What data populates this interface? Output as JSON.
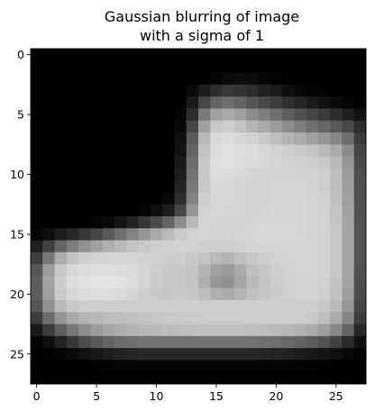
{
  "chart_data": {
    "type": "heatmap",
    "title_lines": [
      "Gaussian blurring of image",
      "with a sigma of 1"
    ],
    "colormap": "gray",
    "value_range": [
      0,
      255
    ],
    "x_ticks": [
      0,
      5,
      10,
      15,
      20,
      25
    ],
    "y_ticks": [
      0,
      5,
      10,
      15,
      20,
      25
    ],
    "xlim": [
      -0.5,
      27.5
    ],
    "ylim": [
      27.5,
      -0.5
    ],
    "rows": 28,
    "cols": 28,
    "grid": false,
    "values": [
      [
        0,
        0,
        0,
        0,
        0,
        0,
        0,
        0,
        0,
        0,
        0,
        0,
        0,
        0,
        0,
        0,
        0,
        0,
        0,
        0,
        0,
        0,
        0,
        0,
        0,
        0,
        0,
        0
      ],
      [
        0,
        0,
        0,
        0,
        0,
        0,
        0,
        0,
        0,
        0,
        0,
        0,
        0,
        0,
        0,
        0,
        0,
        0,
        0,
        0,
        0,
        0,
        0,
        0,
        0,
        0,
        0,
        0
      ],
      [
        0,
        0,
        0,
        0,
        0,
        0,
        0,
        0,
        0,
        0,
        0,
        0,
        0,
        0,
        0,
        5,
        10,
        14,
        12,
        8,
        4,
        2,
        0,
        0,
        0,
        0,
        0,
        0
      ],
      [
        0,
        0,
        0,
        0,
        0,
        0,
        0,
        0,
        0,
        0,
        0,
        0,
        0,
        10,
        28,
        45,
        55,
        52,
        45,
        35,
        25,
        15,
        8,
        4,
        2,
        0,
        0,
        0
      ],
      [
        0,
        0,
        0,
        0,
        0,
        0,
        0,
        0,
        0,
        0,
        0,
        0,
        0,
        25,
        70,
        100,
        110,
        100,
        85,
        72,
        60,
        48,
        38,
        28,
        18,
        10,
        5,
        2
      ],
      [
        0,
        0,
        0,
        0,
        0,
        0,
        0,
        0,
        0,
        0,
        0,
        0,
        5,
        45,
        120,
        160,
        170,
        160,
        140,
        125,
        110,
        95,
        82,
        70,
        58,
        45,
        32,
        18
      ],
      [
        0,
        0,
        0,
        0,
        0,
        0,
        0,
        0,
        0,
        0,
        0,
        0,
        10,
        70,
        160,
        200,
        205,
        195,
        180,
        170,
        155,
        140,
        125,
        112,
        100,
        88,
        72,
        45
      ],
      [
        0,
        0,
        0,
        0,
        0,
        0,
        0,
        0,
        0,
        0,
        0,
        0,
        15,
        90,
        185,
        215,
        220,
        215,
        210,
        200,
        190,
        180,
        170,
        160,
        148,
        135,
        110,
        60
      ],
      [
        0,
        0,
        0,
        0,
        0,
        0,
        0,
        0,
        0,
        0,
        0,
        0,
        20,
        100,
        195,
        220,
        225,
        222,
        220,
        215,
        210,
        205,
        200,
        195,
        185,
        170,
        140,
        70
      ],
      [
        0,
        0,
        0,
        0,
        0,
        0,
        0,
        0,
        0,
        0,
        0,
        0,
        25,
        108,
        200,
        222,
        225,
        220,
        218,
        215,
        212,
        210,
        208,
        205,
        200,
        185,
        150,
        75
      ],
      [
        0,
        0,
        0,
        0,
        0,
        0,
        0,
        0,
        0,
        0,
        0,
        0,
        30,
        115,
        200,
        220,
        218,
        215,
        212,
        210,
        210,
        212,
        210,
        210,
        205,
        190,
        155,
        78
      ],
      [
        0,
        0,
        0,
        0,
        0,
        0,
        0,
        0,
        0,
        0,
        0,
        0,
        35,
        120,
        200,
        215,
        215,
        212,
        210,
        210,
        212,
        212,
        212,
        210,
        205,
        190,
        158,
        80
      ],
      [
        0,
        0,
        0,
        0,
        0,
        0,
        0,
        0,
        0,
        0,
        0,
        8,
        45,
        130,
        205,
        215,
        215,
        212,
        210,
        210,
        212,
        212,
        214,
        212,
        208,
        192,
        160,
        80
      ],
      [
        0,
        0,
        0,
        0,
        0,
        0,
        0,
        0,
        0,
        5,
        15,
        30,
        70,
        150,
        210,
        215,
        212,
        212,
        210,
        212,
        214,
        214,
        214,
        212,
        208,
        195,
        162,
        80
      ],
      [
        0,
        0,
        0,
        0,
        0,
        5,
        10,
        20,
        35,
        55,
        75,
        100,
        140,
        185,
        212,
        212,
        210,
        210,
        212,
        214,
        214,
        214,
        214,
        212,
        210,
        197,
        165,
        82
      ],
      [
        5,
        15,
        28,
        40,
        55,
        70,
        90,
        110,
        130,
        150,
        170,
        185,
        200,
        210,
        212,
        210,
        210,
        212,
        214,
        216,
        216,
        215,
        214,
        212,
        210,
        198,
        165,
        82
      ],
      [
        30,
        65,
        100,
        125,
        145,
        160,
        175,
        185,
        195,
        200,
        205,
        208,
        210,
        210,
        205,
        205,
        205,
        210,
        212,
        214,
        214,
        212,
        212,
        212,
        210,
        198,
        165,
        82
      ],
      [
        60,
        120,
        170,
        195,
        205,
        210,
        212,
        212,
        212,
        210,
        208,
        205,
        205,
        200,
        195,
        185,
        180,
        190,
        200,
        205,
        210,
        212,
        212,
        212,
        210,
        198,
        165,
        82
      ],
      [
        85,
        155,
        200,
        215,
        220,
        222,
        222,
        220,
        218,
        212,
        205,
        200,
        200,
        195,
        180,
        160,
        155,
        170,
        190,
        198,
        205,
        210,
        212,
        212,
        210,
        198,
        165,
        80
      ],
      [
        95,
        165,
        205,
        220,
        225,
        228,
        228,
        225,
        220,
        212,
        205,
        200,
        200,
        195,
        175,
        150,
        145,
        165,
        185,
        195,
        203,
        208,
        210,
        210,
        208,
        195,
        162,
        78
      ],
      [
        95,
        160,
        200,
        215,
        220,
        222,
        220,
        218,
        212,
        205,
        200,
        198,
        200,
        198,
        190,
        175,
        170,
        180,
        192,
        198,
        203,
        208,
        210,
        210,
        205,
        192,
        158,
        75
      ],
      [
        85,
        145,
        185,
        200,
        205,
        205,
        205,
        205,
        205,
        205,
        205,
        205,
        205,
        205,
        205,
        205,
        205,
        205,
        205,
        205,
        205,
        205,
        205,
        205,
        200,
        185,
        150,
        70
      ],
      [
        60,
        110,
        150,
        170,
        180,
        185,
        188,
        190,
        192,
        195,
        198,
        200,
        202,
        202,
        203,
        205,
        205,
        205,
        205,
        205,
        205,
        205,
        203,
        200,
        190,
        170,
        135,
        60
      ],
      [
        25,
        60,
        95,
        120,
        140,
        155,
        165,
        172,
        178,
        182,
        185,
        188,
        190,
        190,
        192,
        192,
        192,
        192,
        190,
        188,
        185,
        182,
        178,
        170,
        158,
        135,
        100,
        40
      ],
      [
        5,
        15,
        35,
        55,
        75,
        90,
        100,
        108,
        112,
        115,
        115,
        115,
        115,
        115,
        115,
        115,
        115,
        115,
        115,
        112,
        110,
        105,
        100,
        92,
        82,
        65,
        42,
        15
      ],
      [
        0,
        2,
        5,
        10,
        18,
        25,
        30,
        35,
        38,
        40,
        40,
        40,
        40,
        40,
        40,
        40,
        40,
        40,
        40,
        38,
        36,
        34,
        30,
        26,
        20,
        14,
        8,
        2
      ],
      [
        0,
        0,
        0,
        0,
        0,
        2,
        3,
        4,
        5,
        5,
        5,
        5,
        5,
        5,
        5,
        5,
        5,
        5,
        5,
        5,
        5,
        4,
        4,
        3,
        2,
        1,
        0,
        0
      ],
      [
        0,
        0,
        0,
        0,
        0,
        0,
        0,
        0,
        0,
        0,
        0,
        0,
        0,
        0,
        0,
        0,
        0,
        0,
        0,
        0,
        0,
        0,
        0,
        0,
        0,
        0,
        0,
        0
      ]
    ]
  }
}
